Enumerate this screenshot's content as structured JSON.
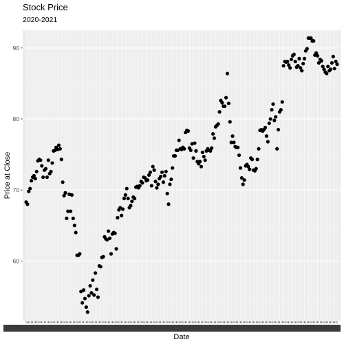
{
  "chart_data": {
    "type": "scatter",
    "title": "Stock Price",
    "subtitle": "2020-2021",
    "xlabel": "Date",
    "ylabel": "Price at Close",
    "ylim": [
      51.5,
      92.5
    ],
    "yticks": [
      60,
      70,
      80,
      90
    ],
    "grid": true,
    "legend": "none",
    "colors": {
      "panel": "#ebebeb",
      "grid_major": "#ffffff",
      "grid_minor": "#f5f5f5",
      "point": "#000000"
    },
    "y": [
      68.3,
      68.0,
      69.8,
      70.2,
      71.3,
      71.8,
      72.0,
      71.6,
      72.6,
      74.1,
      74.3,
      74.2,
      73.4,
      71.8,
      72.8,
      73.0,
      71.8,
      74.2,
      72.3,
      72.6,
      73.8,
      75.5,
      75.6,
      76.0,
      75.7,
      76.3,
      75.8,
      74.3,
      71.1,
      69.2,
      69.6,
      66.0,
      67.0,
      69.4,
      67.0,
      69.3,
      66.0,
      65.0,
      64.0,
      60.8,
      60.8,
      61.0,
      55.7,
      54.1,
      55.9,
      54.7,
      53.5,
      52.8,
      55.1,
      56.5,
      55.5,
      57.3,
      55.2,
      58.3,
      56.0,
      54.9,
      59.3,
      59.2,
      60.5,
      60.6,
      63.4,
      63.1,
      63.0,
      64.2,
      63.2,
      61.0,
      63.8,
      64.0,
      63.9,
      61.7,
      66.1,
      67.2,
      67.5,
      66.4,
      67.3,
      68.8,
      69.3,
      70.2,
      68.8,
      67.5,
      67.8,
      68.4,
      69.0,
      68.8,
      70.4,
      70.5,
      70.3,
      70.6,
      71.2,
      71.0,
      71.8,
      71.7,
      71.3,
      71.4,
      72.1,
      72.5,
      70.6,
      73.3,
      72.8,
      71.2,
      70.3,
      70.8,
      71.6,
      71.9,
      72.5,
      71.1,
      72.0,
      72.6,
      69.5,
      68.0,
      70.8,
      71.5,
      73.1,
      74.8,
      74.8,
      75.6,
      75.6,
      77.0,
      75.8,
      75.7,
      76.0,
      75.8,
      78.1,
      78.4,
      78.3,
      75.9,
      75.6,
      76.5,
      74.5,
      76.6,
      75.5,
      74.0,
      73.7,
      74.0,
      73.3,
      75.3,
      74.7,
      74.2,
      75.5,
      75.8,
      75.6,
      75.5,
      75.9,
      77.9,
      77.3,
      78.9,
      79.1,
      79.3,
      81.0,
      82.6,
      82.3,
      81.8,
      81.8,
      83.0,
      86.4,
      82.2,
      79.6,
      76.7,
      77.6,
      76.7,
      76.1,
      76.0,
      76.0,
      74.9,
      73.1,
      71.7,
      70.8,
      71.4,
      73.4,
      73.6,
      73.3,
      72.9,
      74.5,
      74.3,
      72.8,
      72.7,
      73.0,
      74.3,
      75.8,
      78.4,
      78.5,
      78.3,
      78.5,
      78.8,
      77.6,
      76.8,
      79.4,
      80.0,
      81.3,
      82.1,
      79.8,
      80.3,
      75.8,
      78.5,
      81.0,
      81.3,
      82.4,
      87.5,
      88.1,
      88.0,
      88.1,
      87.6,
      87.2,
      88.4,
      88.9,
      89.1,
      88.1,
      87.3,
      87.5,
      88.5,
      87.2,
      86.8,
      87.8,
      88.5,
      89.6,
      89.9,
      91.4,
      91.4,
      91.4,
      91.0,
      91.0,
      89.0,
      89.3,
      88.9,
      87.9,
      88.4,
      88.2,
      87.4,
      87.0,
      86.6,
      86.4,
      87.4,
      86.8,
      87.0,
      87.9,
      88.8,
      87.1,
      88.1,
      87.7
    ]
  }
}
